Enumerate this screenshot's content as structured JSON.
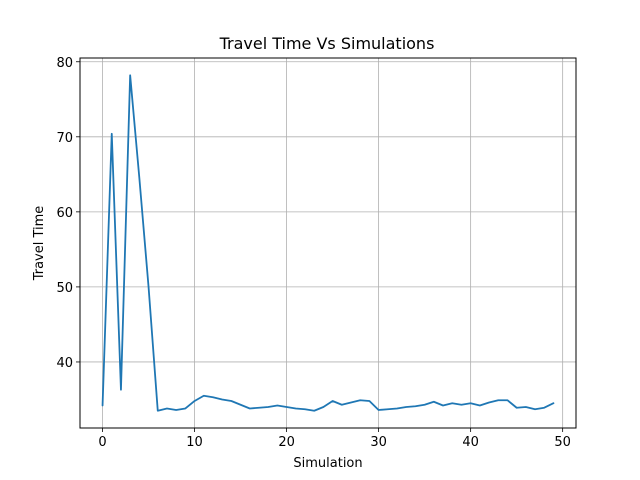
{
  "chart_data": {
    "type": "line",
    "title": "Travel Time Vs Simulations",
    "xlabel": "Simulation",
    "ylabel": "Travel Time",
    "xlim": [
      -2.45,
      51.45
    ],
    "ylim": [
      31.2,
      80.5
    ],
    "xticks": [
      0,
      10,
      20,
      30,
      40,
      50
    ],
    "yticks": [
      40,
      50,
      60,
      70,
      80
    ],
    "grid": true,
    "series": [
      {
        "color": "#1f77b4",
        "x": [
          0,
          1,
          2,
          3,
          4,
          5,
          6,
          7,
          8,
          9,
          10,
          11,
          12,
          13,
          14,
          15,
          16,
          17,
          18,
          19,
          20,
          21,
          22,
          23,
          24,
          25,
          26,
          27,
          28,
          29,
          30,
          31,
          32,
          33,
          34,
          35,
          36,
          37,
          38,
          39,
          40,
          41,
          42,
          43,
          44,
          45,
          46,
          47,
          48,
          49
        ],
        "y": [
          34.2,
          70.4,
          36.3,
          78.2,
          64.5,
          50.0,
          33.5,
          33.8,
          33.6,
          33.8,
          34.8,
          35.5,
          35.3,
          35.0,
          34.8,
          34.3,
          33.8,
          33.9,
          34.0,
          34.2,
          34.0,
          33.8,
          33.7,
          33.5,
          34.0,
          34.8,
          34.3,
          34.6,
          34.9,
          34.8,
          33.6,
          33.7,
          33.8,
          34.0,
          34.1,
          34.3,
          34.7,
          34.2,
          34.5,
          34.3,
          34.5,
          34.2,
          34.6,
          34.9,
          34.9,
          33.9,
          34.0,
          33.7,
          33.9,
          34.5
        ]
      }
    ]
  }
}
